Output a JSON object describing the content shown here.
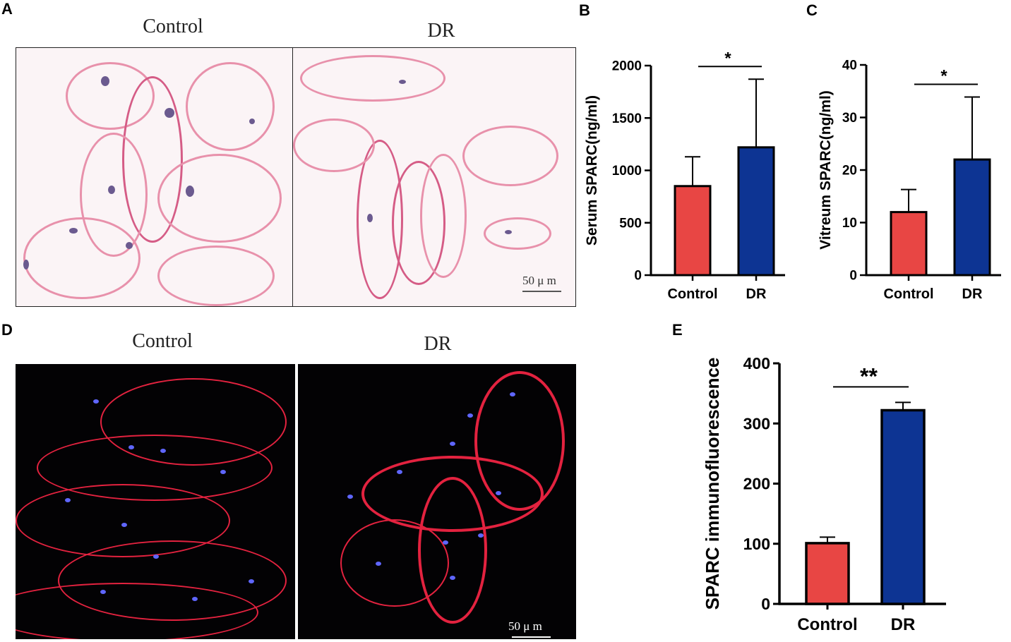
{
  "panels": {
    "A": {
      "letter": "A",
      "left_title": "Control",
      "right_title": "DR",
      "scalebar": "50 μ m"
    },
    "D": {
      "letter": "D",
      "left_title": "Control",
      "right_title": "DR",
      "scalebar": "50 μ m"
    },
    "B": {
      "letter": "B"
    },
    "C": {
      "letter": "C"
    },
    "E": {
      "letter": "E"
    }
  },
  "colors": {
    "control": "#e84644",
    "dr": "#0d3493",
    "bar_outline": "#000000"
  },
  "chart_data": [
    {
      "panel": "B",
      "type": "bar",
      "categories": [
        "Control",
        "DR"
      ],
      "values": [
        850,
        1220
      ],
      "error_upper": [
        1130,
        1870
      ],
      "ylabel": "Serum SPARC(ng/ml)",
      "ylim": [
        0,
        2000
      ],
      "yticks": [
        0,
        500,
        1000,
        1500,
        2000
      ],
      "significance": "*",
      "grid": false
    },
    {
      "panel": "C",
      "type": "bar",
      "categories": [
        "Control",
        "DR"
      ],
      "values": [
        12,
        22
      ],
      "error_upper": [
        16.3,
        33.9
      ],
      "ylabel": "Vitreum SPARC(ng/ml)",
      "ylim": [
        0,
        40
      ],
      "yticks": [
        0,
        10,
        20,
        30,
        40
      ],
      "significance": "*",
      "grid": false
    },
    {
      "panel": "E",
      "type": "bar",
      "categories": [
        "Control",
        "DR"
      ],
      "values": [
        101,
        322
      ],
      "error_upper": [
        111,
        335
      ],
      "ylabel": "SPARC immunofluorescence",
      "ylim": [
        0,
        400
      ],
      "yticks": [
        0,
        100,
        200,
        300,
        400
      ],
      "significance": "**",
      "grid": false
    }
  ]
}
